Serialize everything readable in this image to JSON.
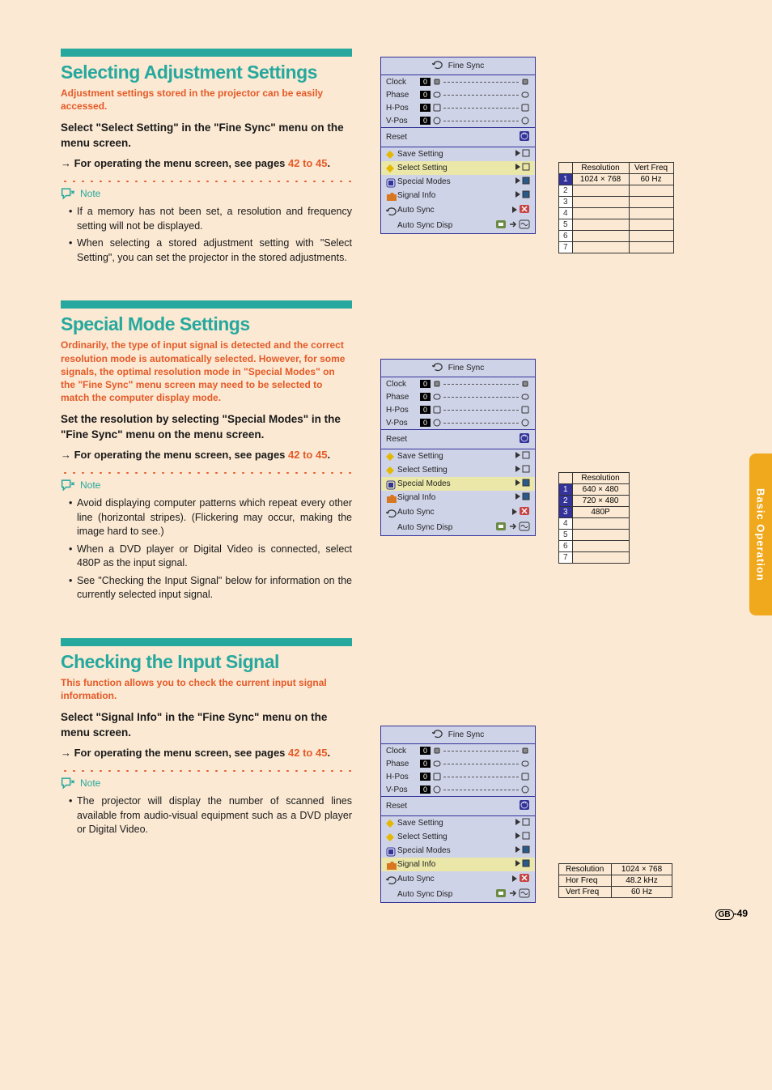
{
  "side_tab": "Basic Operation",
  "page_number": "-49",
  "page_prefix": "GB",
  "colors": {
    "teal": "#26a89e",
    "orange": "#e55a28",
    "menu_bg": "#cfd3e8",
    "menu_border": "#333399",
    "highlight": "#eae7a8",
    "page_bg": "#fbe9d3",
    "tab_bg": "#f0a81c"
  },
  "fine_sync": {
    "title": "Fine Sync",
    "sliders": [
      {
        "label": "Clock",
        "value": "0"
      },
      {
        "label": "Phase",
        "value": "0"
      },
      {
        "label": "H-Pos",
        "value": "0"
      },
      {
        "label": "V-Pos",
        "value": "0"
      }
    ],
    "reset": "Reset",
    "items": [
      {
        "label": "Save Setting"
      },
      {
        "label": "Select Setting"
      },
      {
        "label": "Special Modes"
      },
      {
        "label": "Signal Info"
      },
      {
        "label": "Auto Sync"
      },
      {
        "label": "Auto Sync Disp"
      }
    ]
  },
  "sections": [
    {
      "heading": "Selecting Adjustment Settings",
      "intro": "Adjustment settings stored in the projector can be easily accessed.",
      "step": "Select \"Select Setting\" in the \"Fine Sync\" menu on the menu screen.",
      "step_sub_prefix": "→ For operating the menu screen, see pages ",
      "page_ref": "42 to 45",
      "step_sub_suffix": ".",
      "note_label": "Note",
      "notes": [
        "If a memory has not been set, a resolution and frequency setting will not be displayed.",
        "When selecting a stored adjustment setting with \"Select Setting\", you can set the projector in the stored adjustments."
      ],
      "highlight": "Select Setting",
      "side_table": {
        "headers": [
          "Resolution",
          "Vert Freq"
        ],
        "rows": [
          {
            "idx": "1",
            "res": "1024 × 768",
            "freq": "60 Hz"
          },
          {
            "idx": "2",
            "res": "",
            "freq": ""
          },
          {
            "idx": "3",
            "res": "",
            "freq": ""
          },
          {
            "idx": "4",
            "res": "",
            "freq": ""
          },
          {
            "idx": "5",
            "res": "",
            "freq": ""
          },
          {
            "idx": "6",
            "res": "",
            "freq": ""
          },
          {
            "idx": "7",
            "res": "",
            "freq": ""
          }
        ]
      }
    },
    {
      "heading": "Special Mode Settings",
      "intro": "Ordinarily, the type of input signal is detected and the correct resolution mode is automatically selected. However, for some signals, the optimal resolution mode in \"Special Modes\" on the \"Fine Sync\" menu screen may need to be selected to match the computer display mode.",
      "step": "Set the resolution by selecting \"Special Modes\" in the \"Fine Sync\" menu on the menu screen.",
      "step_sub_prefix": "→ For operating the menu screen, see pages ",
      "page_ref": "42 to 45",
      "step_sub_suffix": ".",
      "note_label": "Note",
      "notes": [
        "Avoid displaying computer patterns which repeat every other line (horizontal stripes). (Flickering may occur, making the image hard to see.)",
        "When a DVD player or Digital Video is connected, select 480P as the input signal.",
        "See \"Checking the Input Signal\" below for information on the currently selected input signal."
      ],
      "highlight": "Special Modes",
      "side_table": {
        "headers": [
          "Resolution"
        ],
        "rows": [
          {
            "idx": "1",
            "res": "640 × 480"
          },
          {
            "idx": "2",
            "res": "720 × 480"
          },
          {
            "idx": "3",
            "res": "480P"
          },
          {
            "idx": "4",
            "res": ""
          },
          {
            "idx": "5",
            "res": ""
          },
          {
            "idx": "6",
            "res": ""
          },
          {
            "idx": "7",
            "res": ""
          }
        ]
      }
    },
    {
      "heading": "Checking the Input Signal",
      "intro": "This function allows you to check the current input signal information.",
      "step": "Select \"Signal Info\" in the \"Fine Sync\" menu on the menu screen.",
      "step_sub_prefix": "→ For operating the menu screen, see pages ",
      "page_ref": "42 to 45",
      "step_sub_suffix": ".",
      "note_label": "Note",
      "notes": [
        "The projector will display the number of scanned lines available from audio-visual equipment such as a DVD player or Digital Video."
      ],
      "highlight": "Signal Info",
      "info_table": {
        "rows": [
          {
            "label": "Resolution",
            "val": "1024 × 768"
          },
          {
            "label": "Hor Freq",
            "val": "48.2 kHz"
          },
          {
            "label": "Vert Freq",
            "val": "60 Hz"
          }
        ]
      }
    }
  ]
}
